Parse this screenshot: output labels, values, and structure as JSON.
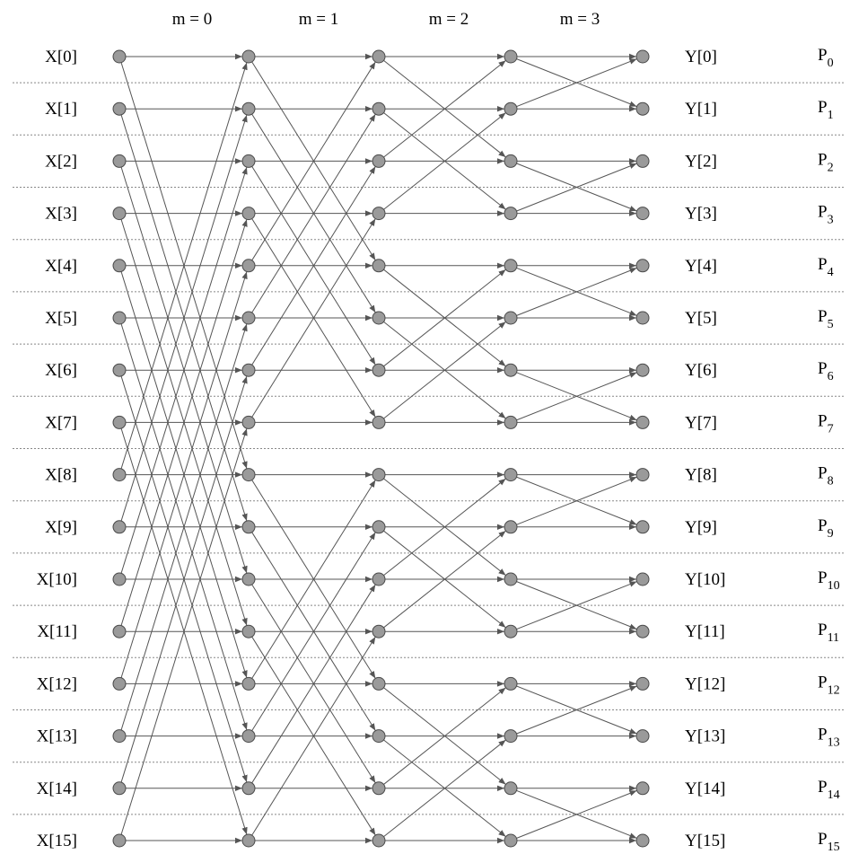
{
  "stages": [
    "m = 0",
    "m = 1",
    "m = 2",
    "m = 3"
  ],
  "inputs": [
    "X[0]",
    "X[1]",
    "X[2]",
    "X[3]",
    "X[4]",
    "X[5]",
    "X[6]",
    "X[7]",
    "X[8]",
    "X[9]",
    "X[10]",
    "X[11]",
    "X[12]",
    "X[13]",
    "X[14]",
    "X[15]"
  ],
  "outputs": [
    "Y[0]",
    "Y[1]",
    "Y[2]",
    "Y[3]",
    "Y[4]",
    "Y[5]",
    "Y[6]",
    "Y[7]",
    "Y[8]",
    "Y[9]",
    "Y[10]",
    "Y[11]",
    "Y[12]",
    "Y[13]",
    "Y[14]",
    "Y[15]"
  ],
  "processors": [
    {
      "base": "P",
      "sub": "0"
    },
    {
      "base": "P",
      "sub": "1"
    },
    {
      "base": "P",
      "sub": "2"
    },
    {
      "base": "P",
      "sub": "3"
    },
    {
      "base": "P",
      "sub": "4"
    },
    {
      "base": "P",
      "sub": "5"
    },
    {
      "base": "P",
      "sub": "6"
    },
    {
      "base": "P",
      "sub": "7"
    },
    {
      "base": "P",
      "sub": "8"
    },
    {
      "base": "P",
      "sub": "9"
    },
    {
      "base": "P",
      "sub": "10"
    },
    {
      "base": "P",
      "sub": "11"
    },
    {
      "base": "P",
      "sub": "12"
    },
    {
      "base": "P",
      "sub": "13"
    },
    {
      "base": "P",
      "sub": "14"
    },
    {
      "base": "P",
      "sub": "15"
    }
  ],
  "colors": {
    "node_fill": "#9a9a9a",
    "node_stroke": "#4a4a4a",
    "edge": "#555555",
    "separator": "#888888"
  }
}
